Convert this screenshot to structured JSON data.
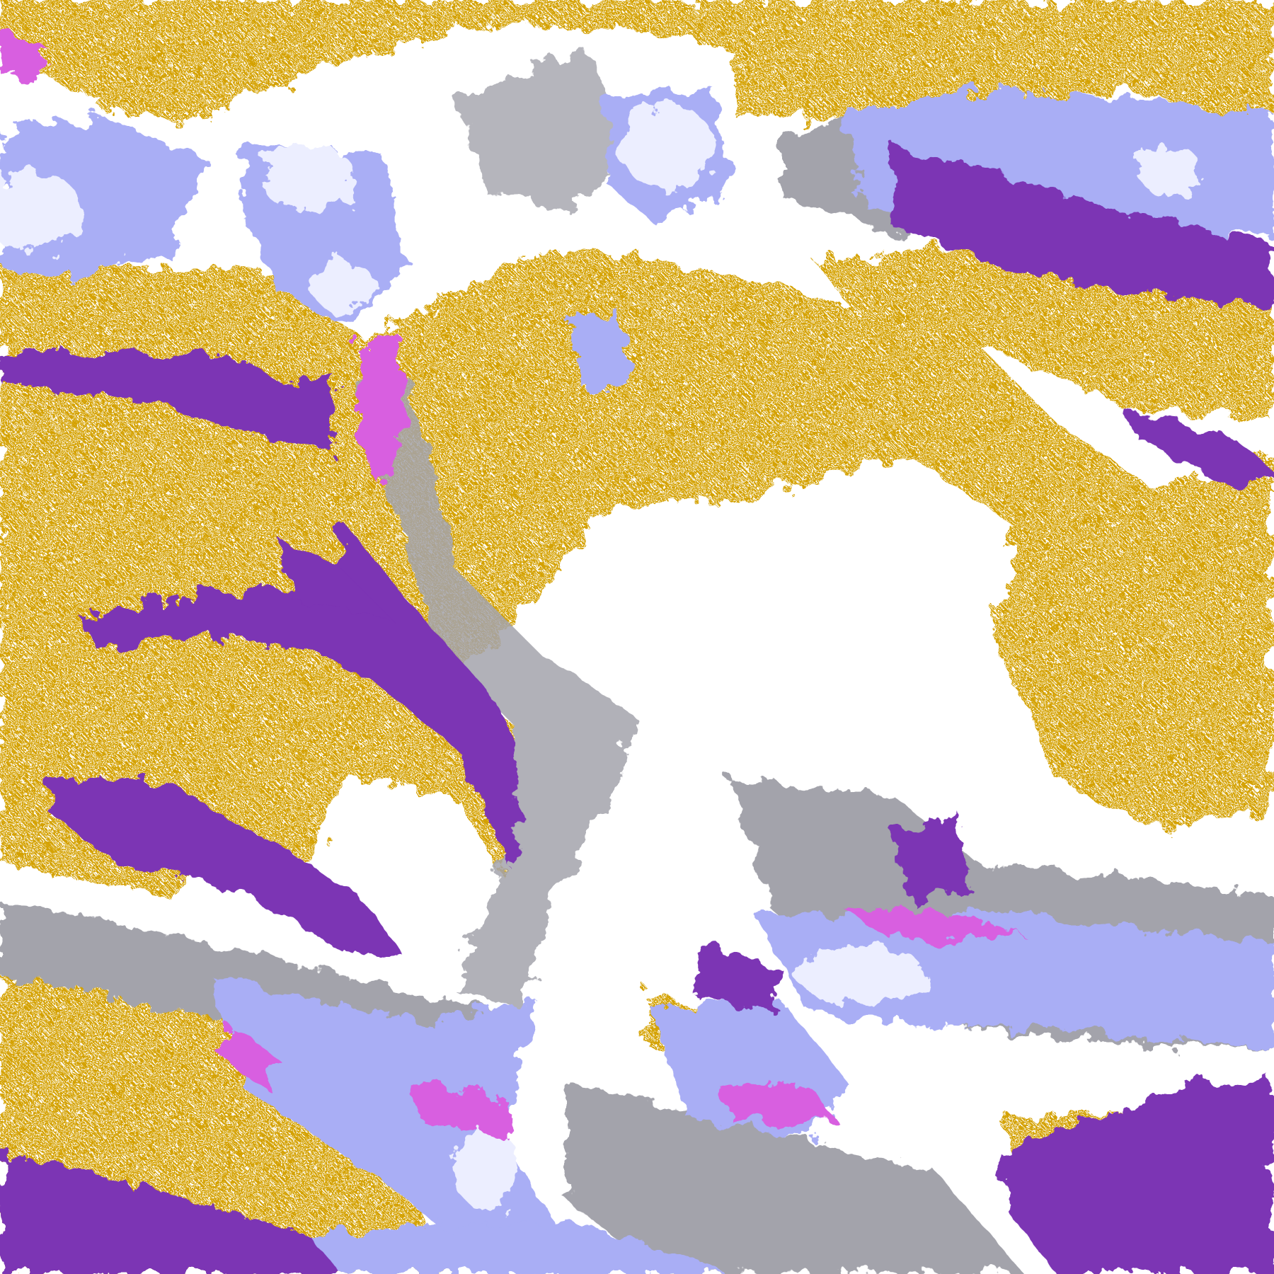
{
  "map": {
    "kind": "satellite cloud-type classification",
    "colors": {
      "clear": "#ffffff",
      "low_cloud": "#d4a106",
      "thick_cloud": "#7b34b4",
      "mixed_phase": "#d85ee0",
      "gray_cloud": "#a3a3ab",
      "high_cloud": "#a9aef5",
      "very_high_cloud": "#eceeff"
    }
  }
}
